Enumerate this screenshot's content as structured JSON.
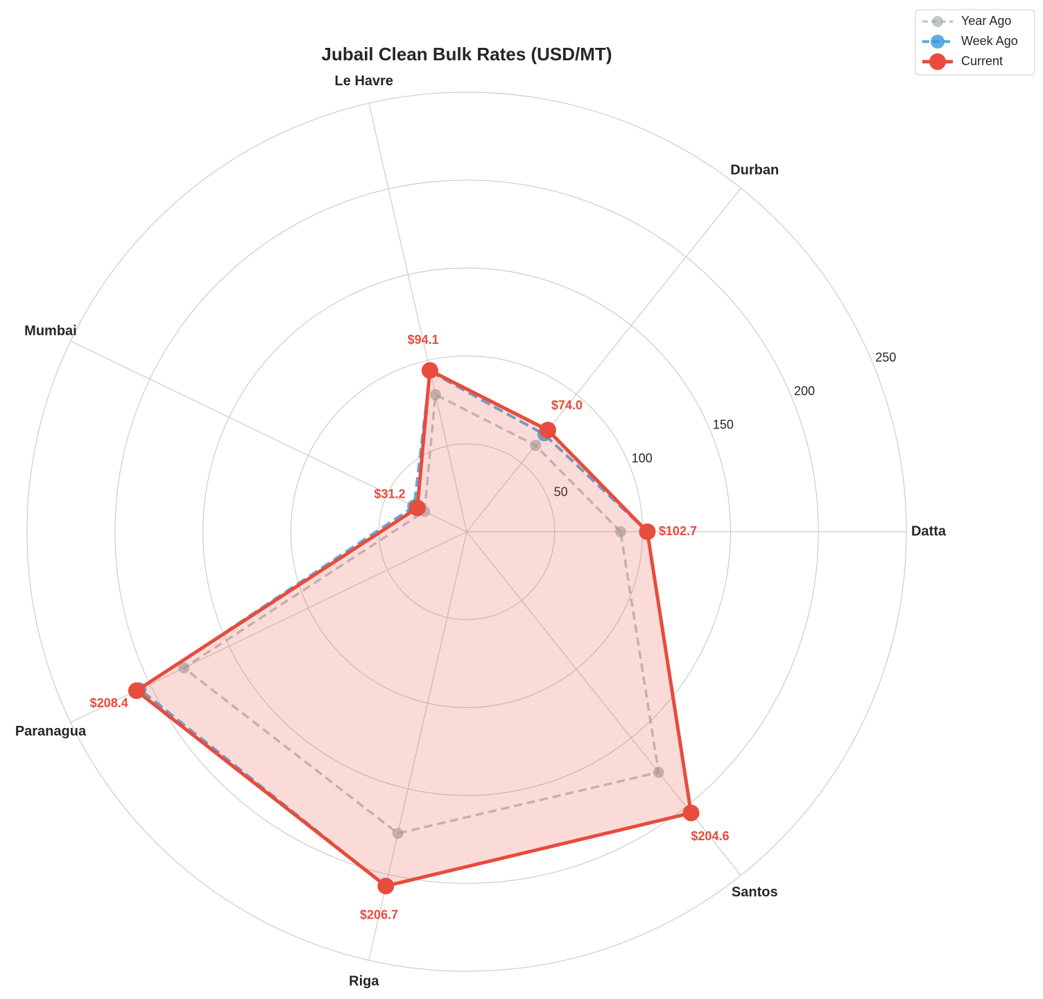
{
  "chart_data": {
    "type": "radar",
    "title": "Jubail Clean Bulk Rates (USD/MT)",
    "categories": [
      "Datta",
      "Durban",
      "Le Havre",
      "Mumbai",
      "Paranagua",
      "Riga",
      "Santos"
    ],
    "series": [
      {
        "name": "Year Ago",
        "color": "#95a5a6",
        "values": [
          87.5,
          62.8,
          80.0,
          26.6,
          178.5,
          176.0,
          175.0
        ]
      },
      {
        "name": "Week Ago",
        "color": "#3498db",
        "values": [
          102.7,
          70.8,
          93.5,
          33.2,
          206.5,
          206.7,
          204.6
        ]
      },
      {
        "name": "Current",
        "color": "#e74c3c",
        "values": [
          102.7,
          74.0,
          94.1,
          31.2,
          208.4,
          206.7,
          204.6
        ],
        "value_labels": [
          "$102.7",
          "$74.0",
          "$94.1",
          "$31.2",
          "$208.4",
          "$206.7",
          "$204.6"
        ]
      }
    ],
    "ylim": [
      0,
      250
    ],
    "yticks": [
      50,
      100,
      150,
      200,
      250
    ],
    "grid": true,
    "legend": "upper right"
  }
}
